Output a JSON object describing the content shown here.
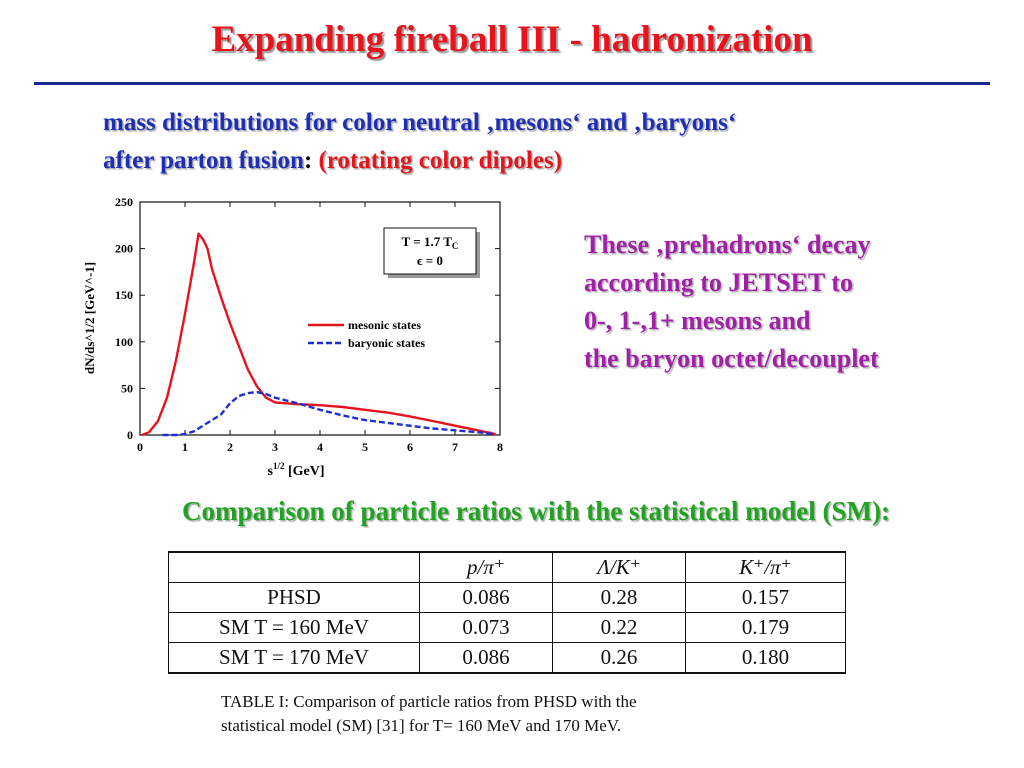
{
  "title": "Expanding fireball III - hadronization",
  "intro": {
    "line1": "mass distributions for color neutral ‚mesons‘ and ‚baryons‘",
    "line2_blue": "after parton fusion",
    "line2_colon": ":",
    "line2_red": "(rotating color dipoles)"
  },
  "side_text": {
    "line1": "These ‚prehadrons‘ decay",
    "line2": "according to JETSET to",
    "line3": "0-, 1-,1+ mesons and",
    "line4": "the baryon octet/decouplet"
  },
  "comparison_heading": "Comparison of particle ratios with the statistical model (SM):",
  "table": {
    "headers": [
      "",
      "p/π⁺",
      "Λ/K⁺",
      "K⁺/π⁺"
    ],
    "rows": [
      [
        "PHSD",
        "0.086",
        "0.28",
        "0.157"
      ],
      [
        "SM T = 160 MeV",
        "0.073",
        "0.22",
        "0.179"
      ],
      [
        "SM T = 170 MeV",
        "0.086",
        "0.26",
        "0.180"
      ]
    ]
  },
  "caption": {
    "line1": "TABLE I: Comparison of particle ratios from PHSD with the",
    "line2": "statistical model (SM) [31] for T= 160 MeV and 170 MeV."
  },
  "chart_data": {
    "type": "line",
    "xlabel": "s^1/2 [GeV]",
    "xlabel_main": "s",
    "xlabel_sup": "1/2",
    "xlabel_unit": " [GeV]",
    "ylabel": "dN/ds^1/2 [GeV^-1]",
    "xlim": [
      0,
      8
    ],
    "ylim": [
      0,
      250
    ],
    "xticks": [
      "0",
      "1",
      "2",
      "3",
      "4",
      "5",
      "6",
      "7",
      "8"
    ],
    "yticks": [
      "0",
      "50",
      "100",
      "150",
      "200",
      "250"
    ],
    "annotation": {
      "line1": "T = 1.7 T",
      "line1_sub": "C",
      "line2": "ϵ = 0"
    },
    "legend_position": "right",
    "series": [
      {
        "name": "mesonic states",
        "color": "#e8131c",
        "style": "solid",
        "x": [
          0.05,
          0.2,
          0.4,
          0.6,
          0.8,
          1.0,
          1.2,
          1.3,
          1.4,
          1.5,
          1.6,
          1.8,
          2.0,
          2.2,
          2.4,
          2.6,
          2.8,
          3.0,
          3.5,
          4.0,
          4.5,
          5.0,
          5.5,
          6.0,
          6.5,
          7.0,
          7.5,
          7.9
        ],
        "y": [
          0,
          3,
          15,
          40,
          80,
          130,
          185,
          216,
          210,
          200,
          178,
          148,
          120,
          95,
          70,
          52,
          40,
          35,
          33,
          32,
          30,
          27,
          24,
          20,
          15,
          10,
          5,
          1
        ]
      },
      {
        "name": "baryonic states",
        "color": "#1e2fd6",
        "style": "dashed",
        "x": [
          0.5,
          0.8,
          1.0,
          1.2,
          1.4,
          1.6,
          1.8,
          2.0,
          2.2,
          2.4,
          2.6,
          2.8,
          3.0,
          3.5,
          4.0,
          4.5,
          5.0,
          5.5,
          6.0,
          6.5,
          7.0,
          7.5,
          7.9
        ],
        "y": [
          0,
          0,
          1,
          4,
          10,
          16,
          22,
          34,
          42,
          45,
          46,
          44,
          40,
          34,
          27,
          21,
          16,
          13,
          10,
          7,
          5,
          3,
          1
        ]
      }
    ]
  }
}
